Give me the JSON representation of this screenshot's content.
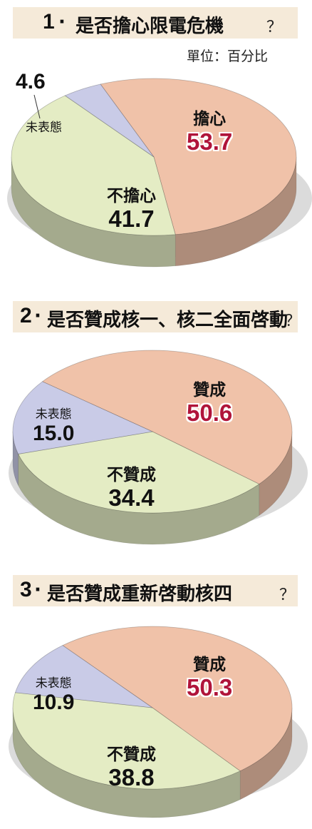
{
  "unit_label": "單位：百分比",
  "chart_data": [
    {
      "type": "pie",
      "number": "1",
      "title": "是否擔心限電危機",
      "categories": [
        "擔心",
        "不擔心",
        "未表態"
      ],
      "values": [
        53.7,
        41.7,
        4.6
      ],
      "colors": [
        "#f0c2a9",
        "#e4ecc4",
        "#c9cbe7"
      ]
    },
    {
      "type": "pie",
      "number": "2",
      "title": "是否贊成核一、核二全面啓動",
      "categories": [
        "贊成",
        "不贊成",
        "未表態"
      ],
      "values": [
        50.6,
        34.4,
        15.0
      ],
      "colors": [
        "#f0c2a9",
        "#e4ecc4",
        "#c9cbe7"
      ]
    },
    {
      "type": "pie",
      "number": "3",
      "title": "是否贊成重新啓動核四",
      "categories": [
        "贊成",
        "不贊成",
        "未表態"
      ],
      "values": [
        50.3,
        38.8,
        10.9
      ],
      "colors": [
        "#f0c2a9",
        "#e4ecc4",
        "#c9cbe7"
      ]
    }
  ],
  "display": {
    "c1": {
      "a": "53.7",
      "b": "41.7",
      "c": "4.6"
    },
    "c2": {
      "a": "50.6",
      "b": "34.4",
      "c": "15.0"
    },
    "c3": {
      "a": "50.3",
      "b": "38.8",
      "c": "10.9"
    },
    "qmark": "？"
  }
}
